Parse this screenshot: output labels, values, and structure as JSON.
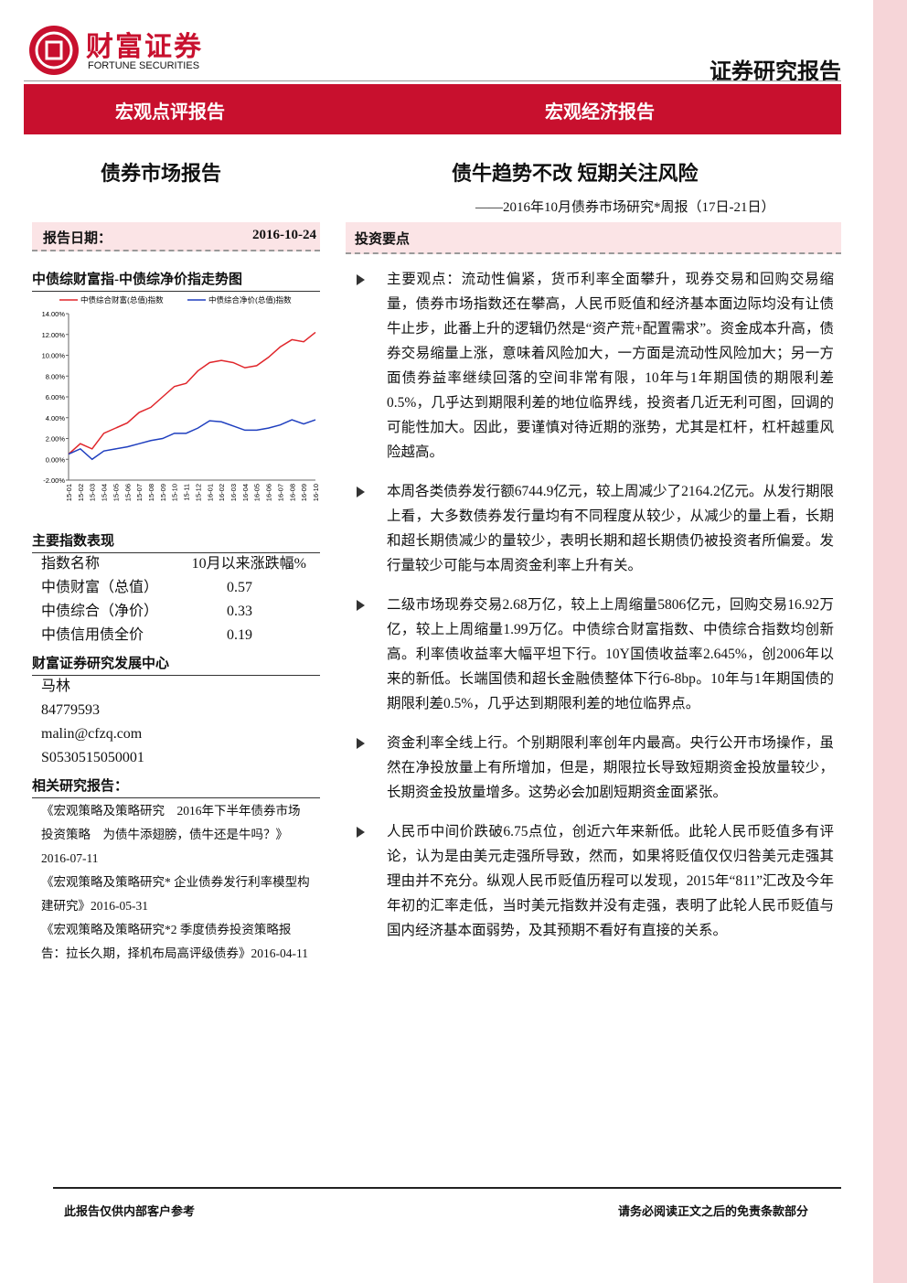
{
  "header": {
    "brand": "财富证券",
    "brand_en": "FORTUNE SECURITIES",
    "doc_type": "证券研究报告",
    "banner_left": "宏观点评报告",
    "banner_right": "宏观经济报告"
  },
  "left": {
    "section": "债券市场报告",
    "date_label": "报告日期：",
    "date": "2016-10-24",
    "chart_title": "中债综财富指-中债综净价指走势图",
    "index_title": "主要指数表现",
    "index_table": {
      "header": [
        "指数名称",
        "10月以来涨跌幅%"
      ],
      "rows": [
        [
          "中债财富（总值）",
          0.57
        ],
        [
          "中债综合（净价）",
          0.33
        ],
        [
          "中债信用债全价",
          0.19
        ]
      ]
    },
    "center": "财富证券研究发展中心",
    "contacts": [
      "马林",
      "84779593",
      "malin@cfzq.com",
      "S0530515050001"
    ],
    "related_title": "相关研究报告：",
    "related": [
      "《宏观策略及策略研究　2016年下半年债券市场投资策略　为债牛添翅膀，债牛还是牛吗？》2016-07-11",
      "《宏观策略及策略研究* 企业债券发行利率模型构建研究》2016-05-31",
      "《宏观策略及策略研究*2 季度债券投资策略报告：拉长久期，择机布局高评级债券》2016-04-11"
    ]
  },
  "chart_data": {
    "type": "line",
    "categories": [
      "15-01",
      "15-02",
      "15-03",
      "15-04",
      "15-05",
      "15-06",
      "15-07",
      "15-08",
      "15-09",
      "15-10",
      "15-11",
      "15-12",
      "16-01",
      "16-02",
      "16-03",
      "16-04",
      "16-05",
      "16-06",
      "16-07",
      "16-08",
      "16-09",
      "16-10"
    ],
    "series": [
      {
        "name": "中债综合财富(总值)指数",
        "color": "#e0262b",
        "values": [
          0.5,
          1.5,
          1.0,
          2.5,
          3.0,
          3.5,
          4.5,
          5.0,
          6.0,
          7.0,
          7.3,
          8.5,
          9.3,
          9.5,
          9.3,
          8.8,
          9.0,
          9.8,
          10.8,
          11.5,
          11.3,
          12.2
        ]
      },
      {
        "name": "中债综合净价(总值)指数",
        "color": "#1f3fbf",
        "values": [
          0.5,
          1.0,
          0.0,
          0.8,
          1.0,
          1.2,
          1.5,
          1.8,
          2.0,
          2.5,
          2.5,
          3.0,
          3.7,
          3.6,
          3.2,
          2.8,
          2.8,
          3.0,
          3.3,
          3.8,
          3.4,
          3.8
        ]
      }
    ],
    "ylim": [
      -2,
      14
    ],
    "yticks": [
      {
        "value": -2,
        "label": "-2.00%"
      },
      {
        "value": 0,
        "label": "0.00%"
      },
      {
        "value": 2,
        "label": "2.00%"
      },
      {
        "value": 4,
        "label": "4.00%"
      },
      {
        "value": 6,
        "label": "6.00%"
      },
      {
        "value": 8,
        "label": "8.00%"
      },
      {
        "value": 10,
        "label": "10.00%"
      },
      {
        "value": 12,
        "label": "12.00%"
      },
      {
        "value": 14,
        "label": "14.00%"
      }
    ],
    "grid": false
  },
  "right": {
    "title": "债牛趋势不改 短期关注风险",
    "subtitle": "——2016年10月债券市场研究*周报（17日-21日）",
    "key_points_title": "投资要点",
    "points": [
      "主要观点：流动性偏紧，货币利率全面攀升，现券交易和回购交易缩量，债券市场指数还在攀高，人民币贬值和经济基本面边际均没有让债牛止步，此番上升的逻辑仍然是“资产荒+配置需求”。资金成本升高，债券交易缩量上涨，意味着风险加大，一方面是流动性风险加大；另一方面债券益率继续回落的空间非常有限，10年与1年期国债的期限利差0.5%，几乎达到期限利差的地位临界线，投资者几近无利可图，回调的可能性加大。因此，要谨慎对待近期的涨势，尤其是杠杆，杠杆越重风险越高。",
      "本周各类债券发行额6744.9亿元，较上周减少了2164.2亿元。从发行期限上看，大多数债券发行量均有不同程度从较少，从减少的量上看，长期和超长期债减少的量较少，表明长期和超长期债仍被投资者所偏爱。发行量较少可能与本周资金利率上升有关。",
      "二级市场现券交易2.68万亿，较上上周缩量5806亿元，回购交易16.92万亿，较上上周缩量1.99万亿。中债综合财富指数、中债综合指数均创新高。利率债收益率大幅平坦下行。10Y国债收益率2.645%，创2006年以来的新低。长端国债和超长金融债整体下行6-8bp。10年与1年期国债的期限利差0.5%，几乎达到期限利差的地位临界点。",
      "资金利率全线上行。个别期限利率创年内最高。央行公开市场操作，虽然在净投放量上有所增加，但是，期限拉长导致短期资金投放量较少，长期资金投放量增多。这势必会加剧短期资金面紧张。",
      "人民币中间价跌破6.75点位，创近六年来新低。此轮人民币贬值多有评论，认为是由美元走强所导致，然而，如果将贬值仅仅归咎美元走强其理由并不充分。纵观人民币贬值历程可以发现，2015年“811”汇改及今年年初的汇率走低，当时美元指数并没有走强，表明了此轮人民币贬值与国内经济基本面弱势，及其预期不看好有直接的关系。"
    ]
  },
  "footer": {
    "left": "此报告仅供内部客户参考",
    "right": "请务必阅读正文之后的免责条款部分"
  }
}
